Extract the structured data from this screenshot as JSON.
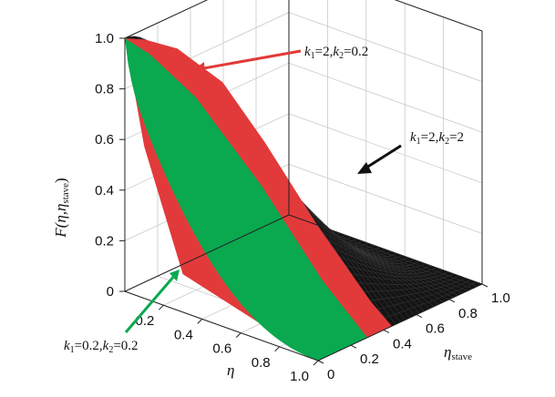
{
  "chart_data": {
    "type": "surface",
    "axes": {
      "z": {
        "label_main": "F",
        "label_args": "(η,η",
        "label_sub": "stave",
        "label_close": ")",
        "ticks": [
          "0",
          "0.2",
          "0.4",
          "0.6",
          "0.8",
          "1.0"
        ],
        "range": [
          0,
          1
        ]
      },
      "x": {
        "label": "η",
        "ticks": [
          "0.2",
          "0.4",
          "0.6",
          "0.8",
          "1.0"
        ],
        "range": [
          0,
          1
        ]
      },
      "y": {
        "label_main": "η",
        "label_sub": "stave",
        "ticks": [
          "0",
          "0.2",
          "0.4",
          "0.6",
          "0.8",
          "1.0"
        ],
        "range": [
          0,
          1
        ]
      }
    },
    "grid": true,
    "series": [
      {
        "name": "k1=2,k2=2",
        "color": "#111111",
        "k1": 2,
        "k2": 2
      },
      {
        "name": "k1=2,k2=0.2",
        "color": "#e23a3a",
        "k1": 2,
        "k2": 0.2
      },
      {
        "name": "k1=0.2,k2=0.2",
        "color": "#0aa84f",
        "k1": 0.2,
        "k2": 0.2
      }
    ],
    "annotations": [
      {
        "id": "a1",
        "k1": "2",
        "k2": "0.2",
        "color": "#e23a3a"
      },
      {
        "id": "a2",
        "k1": "2",
        "k2": "2",
        "color": "#111111"
      },
      {
        "id": "a3",
        "k1": "0.2",
        "k2": "0.2",
        "color": "#0aa84f"
      }
    ]
  }
}
